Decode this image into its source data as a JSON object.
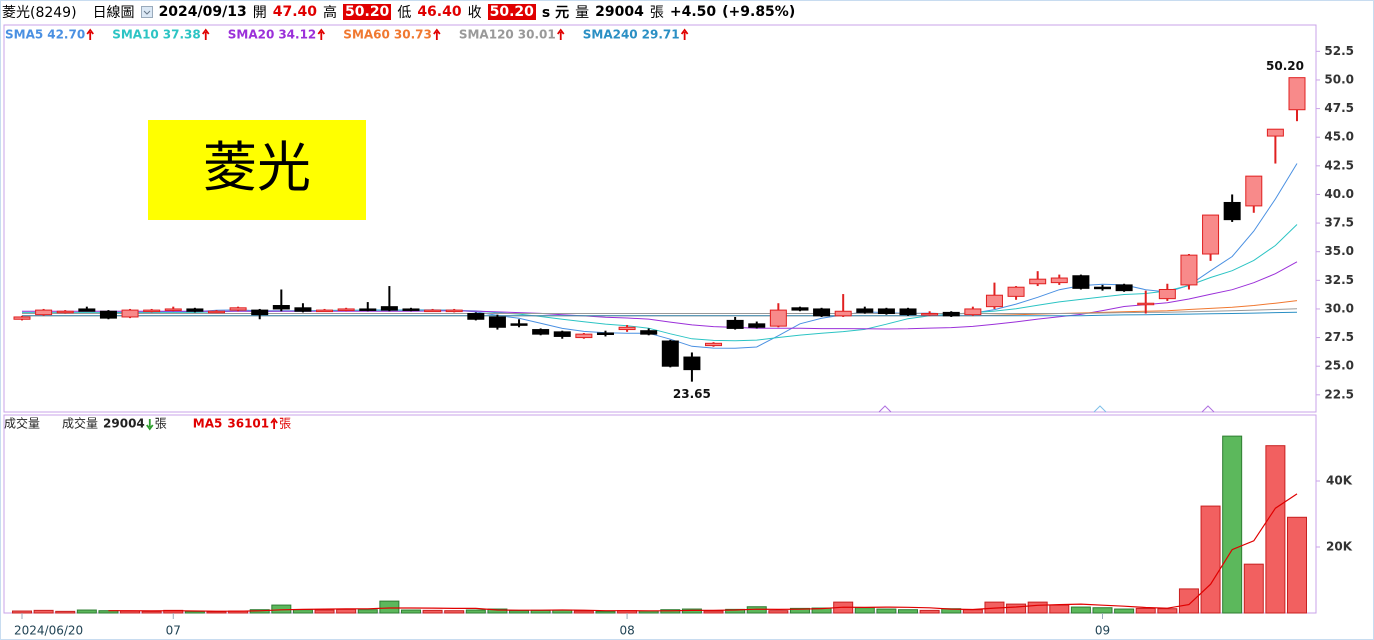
{
  "header": {
    "stock": "菱光(8249)",
    "period": "日線圖",
    "date": "2024/09/13",
    "open_label": "開",
    "open": "47.40",
    "high_label": "高",
    "high": "50.20",
    "low_label": "低",
    "low": "46.40",
    "close_label": "收",
    "close": "50.20",
    "unit": "s 元",
    "volume_label": "量",
    "volume": "29004",
    "volume_unit": "張",
    "change": "+4.50",
    "change_pct": "(+9.85%)"
  },
  "chart_data": [
    {
      "type": "candlestick",
      "stamp": "菱光",
      "open": [
        29.1,
        29.5,
        29.7,
        30.0,
        29.8,
        29.3,
        29.8,
        30.0,
        30.0,
        29.8,
        29.9,
        29.9,
        30.3,
        30.1,
        29.9,
        29.9,
        30.0,
        30.2,
        30.0,
        29.9,
        29.8,
        29.6,
        29.3,
        28.7,
        28.2,
        28.0,
        27.5,
        27.9,
        28.2,
        28.1,
        27.2,
        25.8,
        26.8,
        29.0,
        28.7,
        28.5,
        30.1,
        30.0,
        29.4,
        30.0,
        30.0,
        30.0,
        29.6,
        29.7,
        29.5,
        30.2,
        31.1,
        32.2,
        32.3,
        32.9,
        31.9,
        32.1,
        30.4,
        30.9,
        32.1,
        34.8,
        39.3,
        39.0,
        45.1,
        47.4
      ],
      "high": [
        29.4,
        30.0,
        29.9,
        30.2,
        29.9,
        30.0,
        30.0,
        30.2,
        30.1,
        29.9,
        30.2,
        30.0,
        31.7,
        30.5,
        30.0,
        30.1,
        30.6,
        32.0,
        30.1,
        30.0,
        30.0,
        29.7,
        29.5,
        29.1,
        28.3,
        28.1,
        27.9,
        28.1,
        28.6,
        28.3,
        27.3,
        26.2,
        27.1,
        29.3,
        28.9,
        30.5,
        30.2,
        30.1,
        31.3,
        30.2,
        30.1,
        30.1,
        29.8,
        29.8,
        30.2,
        32.3,
        32.0,
        33.3,
        33.0,
        33.0,
        32.1,
        32.2,
        31.6,
        32.2,
        34.8,
        38.2,
        40.0,
        41.6,
        45.7,
        50.2
      ],
      "low": [
        29.0,
        29.4,
        29.6,
        29.8,
        29.1,
        29.2,
        29.7,
        29.8,
        29.7,
        29.7,
        29.8,
        29.1,
        29.8,
        29.7,
        29.8,
        29.8,
        29.8,
        29.8,
        29.8,
        29.8,
        29.7,
        29.0,
        28.2,
        28.4,
        27.7,
        27.4,
        27.4,
        27.6,
        28.0,
        27.7,
        24.9,
        23.65,
        26.7,
        28.2,
        28.3,
        28.4,
        29.8,
        29.3,
        29.3,
        29.6,
        29.5,
        29.4,
        29.4,
        29.3,
        29.4,
        30.0,
        30.8,
        32.0,
        32.1,
        31.7,
        31.6,
        31.5,
        29.6,
        30.7,
        31.7,
        34.2,
        37.6,
        38.4,
        42.7,
        46.4
      ],
      "close": [
        29.3,
        29.9,
        29.8,
        29.8,
        29.2,
        29.9,
        29.9,
        30.0,
        29.8,
        29.8,
        30.1,
        29.5,
        30.0,
        29.8,
        29.9,
        30.0,
        29.9,
        29.9,
        29.9,
        29.9,
        29.9,
        29.1,
        28.4,
        28.6,
        27.8,
        27.6,
        27.8,
        27.8,
        28.4,
        27.8,
        25.0,
        24.7,
        27.0,
        28.3,
        28.4,
        29.9,
        29.9,
        29.4,
        29.8,
        29.7,
        29.6,
        29.5,
        29.6,
        29.4,
        30.0,
        31.2,
        31.9,
        32.6,
        32.7,
        31.8,
        31.8,
        31.6,
        30.5,
        31.7,
        34.7,
        38.2,
        37.8,
        41.6,
        45.7,
        50.2
      ],
      "up_color": "#f88a8a",
      "up_edge": "#e02020",
      "down_color": "#000000",
      "ylim": [
        21,
        54.8
      ],
      "yticks": [
        {
          "value": 22.5,
          "label": "22.5"
        },
        {
          "value": 25,
          "label": "25.0"
        },
        {
          "value": 27.5,
          "label": "27.5"
        },
        {
          "value": 30,
          "label": "30.0"
        },
        {
          "value": 32.5,
          "label": "32.5"
        },
        {
          "value": 35,
          "label": "35.0"
        },
        {
          "value": 37.5,
          "label": "37.5"
        },
        {
          "value": 40,
          "label": "40.0"
        },
        {
          "value": 42.5,
          "label": "42.5"
        },
        {
          "value": 45,
          "label": "45.0"
        },
        {
          "value": 47.5,
          "label": "47.5"
        },
        {
          "value": 50,
          "label": "50.0"
        },
        {
          "value": 52.5,
          "label": "52.5"
        }
      ],
      "grid": false,
      "annotations": [
        {
          "text": "50.20",
          "value": 50.2
        },
        {
          "text": "23.65",
          "value": 23.65
        }
      ],
      "series": [
        {
          "name": "SMA5",
          "color": "#4a90e2",
          "value_label": "42.70",
          "trend": "up",
          "values": [
            29.6,
            29.6,
            29.6,
            29.6,
            29.6,
            29.72,
            29.72,
            29.76,
            29.76,
            29.88,
            29.92,
            29.84,
            29.84,
            29.84,
            29.86,
            29.84,
            29.92,
            29.9,
            29.92,
            29.92,
            29.9,
            29.74,
            29.44,
            29.18,
            28.76,
            28.3,
            28.04,
            27.92,
            27.88,
            27.88,
            27.36,
            26.74,
            26.58,
            26.56,
            26.68,
            27.66,
            28.7,
            29.18,
            29.48,
            29.74,
            29.68,
            29.6,
            29.64,
            29.56,
            29.62,
            29.94,
            30.42,
            31.02,
            31.68,
            32.04,
            32.16,
            32.1,
            31.68,
            31.48,
            32.06,
            33.34,
            34.58,
            36.8,
            39.6,
            42.7
          ]
        },
        {
          "name": "SMA10",
          "color": "#2cc4c4",
          "value_label": "37.38",
          "trend": "up",
          "values": [
            29.7,
            29.7,
            29.7,
            29.7,
            29.7,
            29.7,
            29.7,
            29.7,
            29.7,
            29.74,
            29.82,
            29.78,
            29.8,
            29.8,
            29.87,
            29.88,
            29.88,
            29.87,
            29.88,
            29.89,
            29.87,
            29.83,
            29.67,
            29.55,
            29.34,
            29.1,
            28.89,
            28.68,
            28.53,
            28.32,
            27.83,
            27.39,
            27.25,
            27.22,
            27.28,
            27.51,
            27.72,
            27.88,
            28.02,
            28.21,
            28.67,
            29.15,
            29.41,
            29.52,
            29.68,
            29.81,
            30.01,
            30.33,
            30.62,
            30.83,
            31.05,
            31.26,
            31.35,
            31.58,
            32.05,
            32.75,
            33.34,
            34.24,
            35.54,
            37.38
          ]
        },
        {
          "name": "SMA20",
          "color": "#9b30d9",
          "value_label": "34.12",
          "trend": "up",
          "values": [
            29.8,
            29.8,
            29.8,
            29.8,
            29.8,
            29.8,
            29.8,
            29.8,
            29.8,
            29.8,
            29.8,
            29.8,
            29.8,
            29.8,
            29.8,
            29.8,
            29.8,
            29.8,
            29.8,
            29.82,
            29.85,
            29.81,
            29.74,
            29.68,
            29.61,
            29.49,
            29.39,
            29.28,
            29.21,
            29.11,
            28.85,
            28.61,
            28.46,
            28.39,
            28.31,
            28.31,
            28.31,
            28.28,
            28.28,
            28.27,
            28.25,
            28.27,
            28.33,
            28.37,
            28.48,
            28.66,
            28.87,
            29.11,
            29.32,
            29.52,
            29.86,
            30.21,
            30.38,
            30.55,
            30.87,
            31.28,
            31.68,
            32.29,
            33.08,
            34.12
          ]
        },
        {
          "name": "SMA60",
          "color": "#f07830",
          "value_label": "30.73",
          "trend": "up",
          "values": [
            29.4,
            29.4,
            29.4,
            29.4,
            29.4,
            29.4,
            29.4,
            29.4,
            29.4,
            29.4,
            29.4,
            29.4,
            29.4,
            29.4,
            29.4,
            29.4,
            29.4,
            29.4,
            29.4,
            29.4,
            29.4,
            29.4,
            29.4,
            29.4,
            29.4,
            29.4,
            29.4,
            29.4,
            29.4,
            29.4,
            29.4,
            29.4,
            29.4,
            29.4,
            29.4,
            29.4,
            29.4,
            29.4,
            29.4,
            29.4,
            29.4,
            29.4,
            29.4,
            29.4,
            29.4,
            29.45,
            29.5,
            29.55,
            29.6,
            29.65,
            29.7,
            29.75,
            29.8,
            29.85,
            29.95,
            30.05,
            30.15,
            30.3,
            30.5,
            30.73
          ]
        },
        {
          "name": "SMA120",
          "color": "#999999",
          "value_label": "30.01",
          "trend": "up",
          "values": [
            29.6,
            29.6,
            29.6,
            29.6,
            29.6,
            29.6,
            29.6,
            29.6,
            29.6,
            29.6,
            29.6,
            29.6,
            29.6,
            29.6,
            29.6,
            29.6,
            29.6,
            29.6,
            29.6,
            29.6,
            29.6,
            29.6,
            29.6,
            29.6,
            29.6,
            29.6,
            29.6,
            29.6,
            29.6,
            29.6,
            29.6,
            29.6,
            29.6,
            29.6,
            29.6,
            29.6,
            29.6,
            29.6,
            29.6,
            29.6,
            29.6,
            29.6,
            29.6,
            29.6,
            29.6,
            29.6,
            29.6,
            29.6,
            29.6,
            29.6,
            29.65,
            29.68,
            29.7,
            29.72,
            29.75,
            29.8,
            29.85,
            29.9,
            29.95,
            30.01
          ]
        },
        {
          "name": "SMA240",
          "color": "#2a8fc4",
          "value_label": "29.71",
          "trend": "up",
          "values": [
            29.4,
            29.4,
            29.4,
            29.4,
            29.4,
            29.4,
            29.4,
            29.4,
            29.4,
            29.4,
            29.4,
            29.4,
            29.4,
            29.4,
            29.4,
            29.4,
            29.4,
            29.4,
            29.4,
            29.4,
            29.4,
            29.4,
            29.4,
            29.4,
            29.4,
            29.4,
            29.4,
            29.4,
            29.4,
            29.4,
            29.4,
            29.4,
            29.4,
            29.4,
            29.4,
            29.4,
            29.4,
            29.4,
            29.4,
            29.4,
            29.4,
            29.4,
            29.4,
            29.4,
            29.4,
            29.4,
            29.4,
            29.4,
            29.4,
            29.4,
            29.45,
            29.48,
            29.5,
            29.52,
            29.55,
            29.58,
            29.6,
            29.64,
            29.68,
            29.71
          ]
        }
      ]
    },
    {
      "type": "bar",
      "title": "成交量",
      "categories": [
        "2024/06/20",
        null,
        null,
        null,
        null,
        null,
        null,
        "07",
        null,
        null,
        null,
        null,
        null,
        null,
        null,
        null,
        null,
        null,
        null,
        null,
        null,
        null,
        null,
        null,
        null,
        null,
        null,
        null,
        "08",
        null,
        null,
        null,
        null,
        null,
        null,
        null,
        null,
        null,
        null,
        null,
        null,
        null,
        null,
        null,
        null,
        null,
        null,
        null,
        null,
        null,
        "09",
        null,
        null,
        null,
        null,
        null,
        null,
        null,
        null,
        null
      ],
      "up_color": "#f26060",
      "up_edge": "#c82020",
      "down_color": "#5cb85c",
      "down_edge": "#2e7d32",
      "ylim": [
        0,
        60000
      ],
      "yticks": [
        {
          "value": 20000,
          "label": "20K"
        },
        {
          "value": 40000,
          "label": "40K"
        }
      ],
      "series": [
        {
          "name": "成交量",
          "unit": "張",
          "trend": "down",
          "values": [
            600,
            800,
            500,
            900,
            700,
            600,
            500,
            800,
            500,
            400,
            600,
            1000,
            2400,
            1000,
            900,
            1100,
            1000,
            3600,
            900,
            800,
            700,
            900,
            1200,
            700,
            800,
            900,
            600,
            500,
            700,
            600,
            1000,
            1200,
            600,
            1100,
            1900,
            700,
            1400,
            1500,
            3300,
            1600,
            1200,
            1000,
            800,
            1300,
            1000,
            3300,
            2700,
            3300,
            2400,
            1800,
            1600,
            1200,
            1400,
            1300,
            7300,
            32400,
            53600,
            14800,
            50700,
            29004
          ]
        },
        {
          "name": "MA5",
          "unit": "張",
          "trend": "up",
          "color": "#e00000",
          "values": [
            null,
            null,
            null,
            null,
            700,
            700,
            640,
            700,
            620,
            560,
            560,
            660,
            980,
            1080,
            1180,
            1280,
            1280,
            1520,
            1500,
            1480,
            1400,
            1380,
            900,
            860,
            860,
            900,
            840,
            700,
            700,
            660,
            680,
            800,
            820,
            900,
            1160,
            1100,
            1140,
            1320,
            1760,
            1700,
            1800,
            1720,
            1580,
            1180,
            1060,
            1480,
            1820,
            2320,
            2540,
            2700,
            2360,
            2060,
            1680,
            1460,
            2560,
            8720,
            19200,
            21880,
            31760,
            36101
          ]
        }
      ]
    }
  ]
}
